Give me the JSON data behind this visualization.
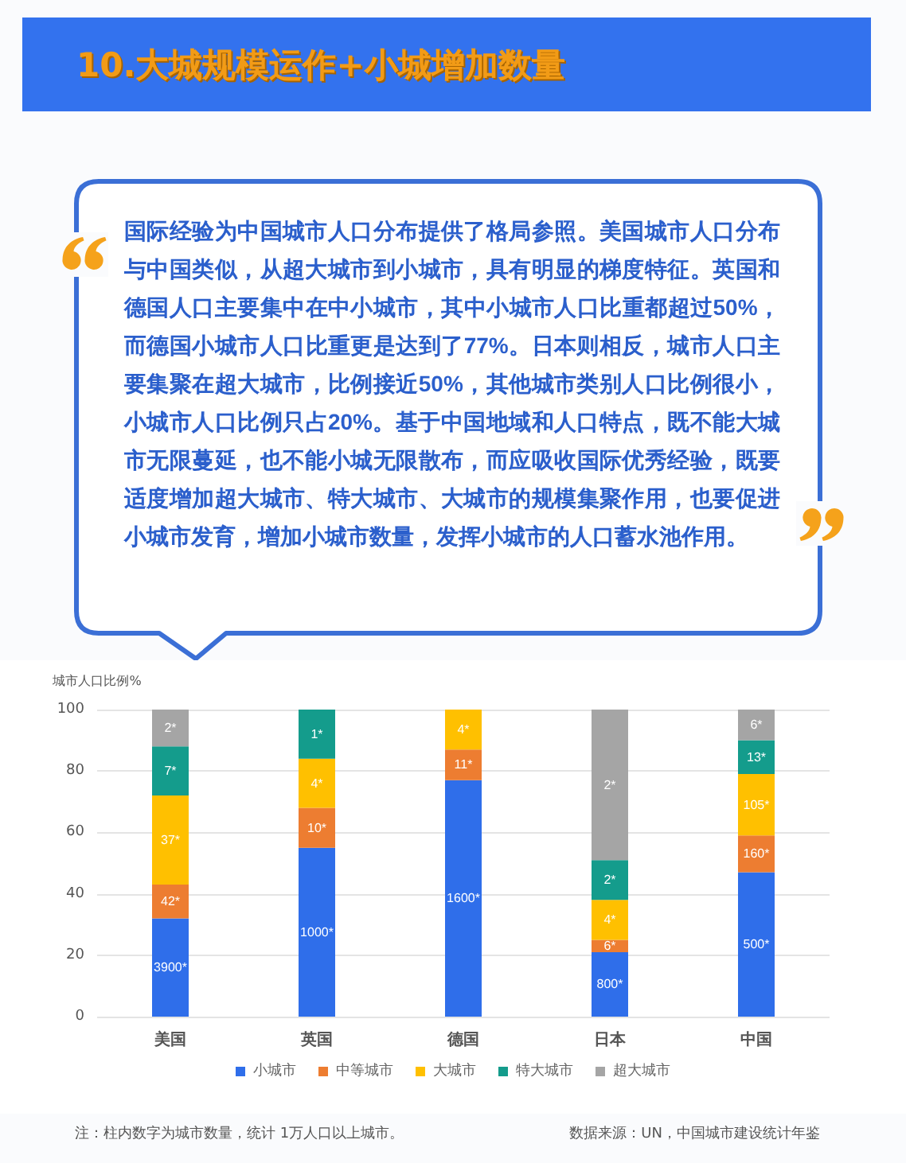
{
  "chart_data": {
    "type": "bar",
    "title": "10.大城规模运作+小城增加数量",
    "subtitle": "国际经验为中国城市人口分布提供了格局参照。美国城市人口分布与中国类似，从超大城市到小城市，具有明显的梯度特征。英国和德国人口主要集中在中小城市，其中小城市人口比重都超过50%，而德国小城市人口比重更是达到了77%。日本则相反，城市人口主要集聚在超大城市，比例接近50%，其他城市类别人口比例很小，小城市人口比例只占20%。基于中国地域和人口特点，既不能大城市无限蔓延，也不能小城无限散布，而应吸收国际优秀经验，既要适度增加超大城市、特大城市、大城市的规模集聚作用，也要促进小城市发育，增加小城市数量，发挥小城市的人口蓄水池作用。",
    "ylabel": "城市人口比例%",
    "annotations": [
      "注：柱内数字为城市数量，统计 1万人口以上城市。",
      "数据来源：UN，中国城市建设统计年鉴",
      "3900*",
      "42*",
      "37*",
      "7*",
      "2*",
      "1000*",
      "10*",
      "4*",
      "1*",
      "1600*",
      "11*",
      "4*",
      "800*",
      "6*",
      "4*",
      "2*",
      "2*",
      "500*",
      "160*",
      "105*",
      "13*",
      "6*"
    ],
    "categories": [
      "美国",
      "英国",
      "德国",
      "日本",
      "中国"
    ],
    "stacked": true,
    "series": [
      {
        "name": "小城市",
        "color": "#2f6eea",
        "values": [
          32,
          55,
          77,
          21,
          47
        ]
      },
      {
        "name": "中等城市",
        "color": "#ed7d31",
        "values": [
          11,
          13,
          10,
          4,
          12
        ]
      },
      {
        "name": "大城市",
        "color": "#ffc000",
        "values": [
          29,
          16,
          13,
          13,
          20
        ]
      },
      {
        "name": "特大城市",
        "color": "#149c8c",
        "values": [
          16,
          16,
          null,
          13,
          11
        ]
      },
      {
        "name": "超大城市",
        "color": "#a5a5a5",
        "values": [
          12,
          null,
          null,
          49,
          10
        ]
      }
    ],
    "ylim": [
      0,
      100
    ],
    "yticks": [
      0,
      20,
      40,
      60,
      80,
      100
    ],
    "grid": "y",
    "legend": "bottom"
  }
}
